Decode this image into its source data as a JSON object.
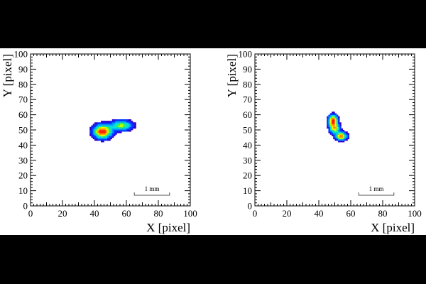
{
  "chart_data": [
    {
      "type": "heatmap",
      "panel": "left",
      "xlabel": "X [pixel]",
      "ylabel": "Y [pixel]",
      "xlim": [
        0,
        100
      ],
      "ylim": [
        0,
        100
      ],
      "xticks": [
        0,
        20,
        40,
        60,
        80,
        100
      ],
      "yticks": [
        0,
        10,
        20,
        30,
        40,
        50,
        60,
        70,
        80,
        90,
        100
      ],
      "scale_bar": {
        "label": "1 mm",
        "x": [
          65,
          87
        ],
        "y": 7
      },
      "clusters": [
        {
          "cx": 45,
          "cy": 49,
          "rx": 5.2,
          "ry": 4.0,
          "peak": 1.0
        },
        {
          "cx": 57,
          "cy": 53,
          "rx": 6.2,
          "ry": 3.0,
          "peak": 0.6
        }
      ]
    },
    {
      "type": "heatmap",
      "panel": "right",
      "xlabel": "X [pixel]",
      "ylabel": "Y [pixel]",
      "xlim": [
        0,
        100
      ],
      "ylim": [
        0,
        100
      ],
      "xticks": [
        0,
        20,
        40,
        60,
        80,
        100
      ],
      "yticks": [
        0,
        10,
        20,
        30,
        40,
        50,
        60,
        70,
        80,
        90,
        100
      ],
      "scale_bar": {
        "label": "1 mm",
        "x": [
          65,
          87
        ],
        "y": 7
      },
      "clusters": [
        {
          "cx": 49,
          "cy": 56,
          "rx": 2.6,
          "ry": 3.4,
          "peak": 1.0
        },
        {
          "cx": 50,
          "cy": 51,
          "rx": 2.8,
          "ry": 2.8,
          "peak": 0.7
        },
        {
          "cx": 54,
          "cy": 46,
          "rx": 3.2,
          "ry": 2.4,
          "peak": 0.85
        }
      ]
    }
  ],
  "colors": {
    "background": "#000000",
    "panel": "#ffffff",
    "axis": "#000000",
    "palette": [
      "#3300cc",
      "#0033ff",
      "#0099ff",
      "#00dddd",
      "#33ee66",
      "#bbff00",
      "#ffee00",
      "#ff8800",
      "#ff2200"
    ]
  }
}
